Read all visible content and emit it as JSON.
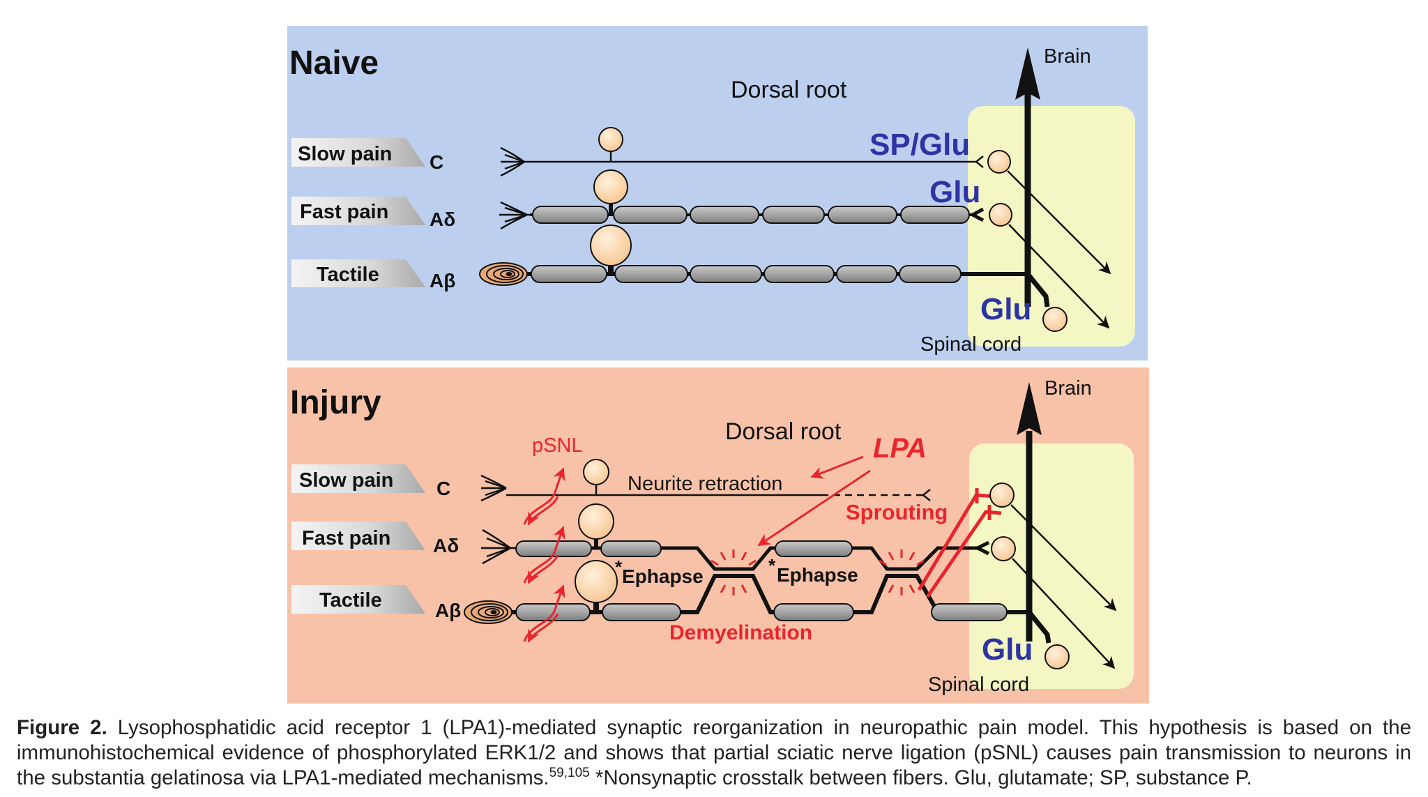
{
  "naive": {
    "title": "Naive",
    "dorsal_root": "Dorsal root",
    "brain": "Brain",
    "spinal_cord": "Spinal cord",
    "labels": {
      "slow_pain": "Slow pain",
      "fast_pain": "Fast pain",
      "tactile": "Tactile"
    },
    "fibers": {
      "c": "C",
      "a_delta": "Aδ",
      "a_beta": "Aβ"
    },
    "transmitters": {
      "sp_glu": "SP/Glu",
      "glu_1": "Glu",
      "glu_2": "Glu"
    }
  },
  "injury": {
    "title": "Injury",
    "dorsal_root": "Dorsal root",
    "brain": "Brain",
    "spinal_cord": "Spinal cord",
    "labels": {
      "slow_pain": "Slow pain",
      "fast_pain": "Fast pain",
      "tactile": "Tactile"
    },
    "fibers": {
      "c": "C",
      "a_delta": "Aδ",
      "a_beta": "Aβ"
    },
    "psnl": "pSNL",
    "lpa": "LPA",
    "neurite_retraction": "Neurite retraction",
    "sprouting": "Sprouting",
    "ephapse_1": "Ephapse",
    "ephapse_2": "Ephapse",
    "asterisk": "*",
    "demyelination": "Demyelination",
    "glu": "Glu"
  },
  "caption": {
    "label": "Figure 2.",
    "text": " Lysophosphatidic acid receptor 1 (LPA1)-mediated synaptic reorganization in neuropathic pain model. This hypothesis is based on the immunohistochemical evidence of phosphorylated ERK1/2 and shows that partial sciatic nerve ligation (pSNL) causes pain transmission to neurons in the substantia gelatinosa via LPA1-mediated mechanisms.",
    "refs": "59,105",
    "note": " *Nonsynaptic crosstalk between fibers. Glu, glutamate; SP, substance P."
  },
  "colors": {
    "naive_bg": "#bccfef",
    "injury_bg": "#f7c2a8",
    "spinal_bg": "#f4f6c4",
    "cell_fill": "#fbd9b0",
    "myelin": "#a9a9a9",
    "red": "#e8252d",
    "blue": "#2c34a3"
  }
}
